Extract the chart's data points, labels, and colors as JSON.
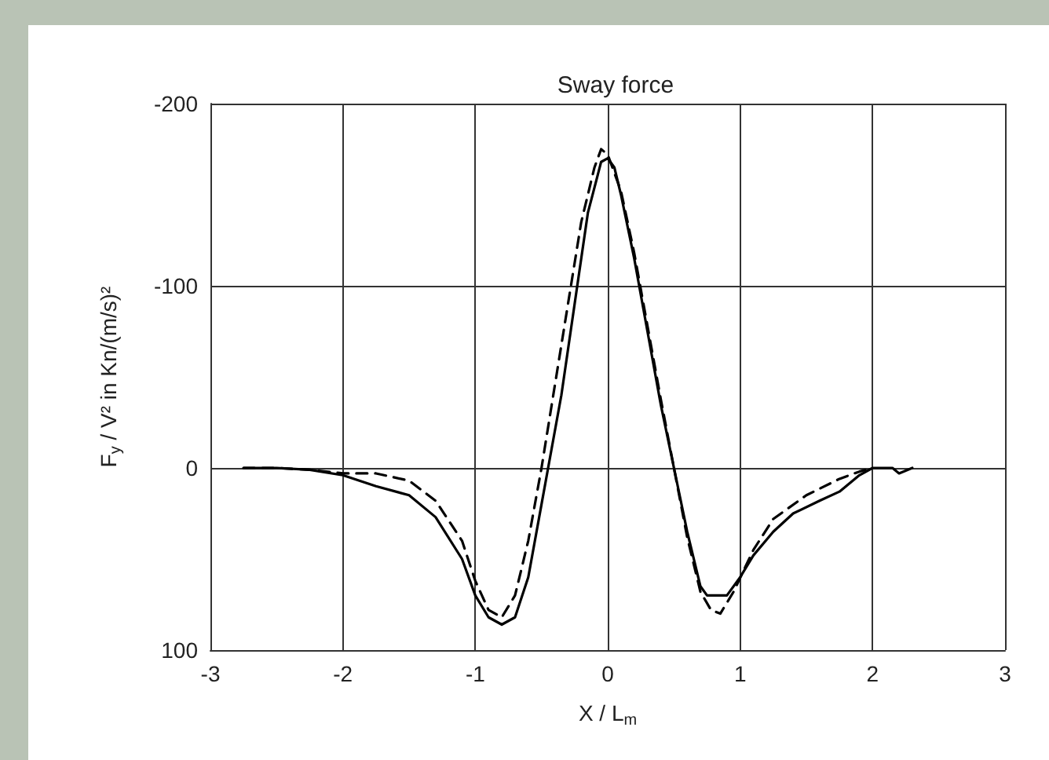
{
  "chart_data": {
    "type": "line",
    "title": "Sway force",
    "xlabel": "X / L$_{m}$",
    "ylabel": "F$_{y}$ / V² in Kn/(m/s)²",
    "xlim": [
      -3,
      3
    ],
    "xticks": [
      -3,
      -2,
      -1,
      0,
      1,
      2,
      3
    ],
    "ylim": [
      100,
      -200
    ],
    "yticks": [
      -200,
      -100,
      0,
      100
    ],
    "grid": true,
    "marker": "none",
    "series": [
      {
        "color": "#000000",
        "line_style": "solid",
        "x": [
          -2.75,
          -2.5,
          -2.25,
          -2,
          -1.75,
          -1.5,
          -1.3,
          -1.1,
          -1.0,
          -0.9,
          -0.8,
          -0.7,
          -0.6,
          -0.5,
          -0.45,
          -0.35,
          -0.25,
          -0.15,
          -0.05,
          0,
          0.05,
          0.1,
          0.2,
          0.3,
          0.4,
          0.5,
          0.6,
          0.7,
          0.75,
          0.9,
          1.0,
          1.1,
          1.25,
          1.4,
          1.6,
          1.75,
          1.9,
          2.0,
          2.15,
          2.2,
          2.3
        ],
        "values": [
          0,
          0,
          1,
          4,
          10,
          15,
          27,
          50,
          70,
          82,
          86,
          82,
          60,
          20,
          0,
          -40,
          -90,
          -140,
          -168,
          -170,
          -165,
          -150,
          -115,
          -75,
          -35,
          0,
          35,
          65,
          70,
          70,
          60,
          48,
          35,
          25,
          18,
          13,
          4,
          0,
          0,
          3,
          0
        ]
      },
      {
        "color": "#000000",
        "line_style": "dashed",
        "x": [
          -2.75,
          -2.5,
          -2.25,
          -2,
          -1.75,
          -1.5,
          -1.3,
          -1.1,
          -1.0,
          -0.9,
          -0.8,
          -0.7,
          -0.6,
          -0.5,
          -0.4,
          -0.3,
          -0.2,
          -0.1,
          -0.05,
          0,
          0.1,
          0.2,
          0.3,
          0.4,
          0.5,
          0.6,
          0.7,
          0.78,
          0.85,
          0.95,
          1.1,
          1.25,
          1.5,
          1.75,
          1.9,
          2.0
        ],
        "values": [
          0,
          0,
          1,
          3,
          3,
          7,
          18,
          40,
          62,
          78,
          82,
          70,
          40,
          0,
          -45,
          -90,
          -135,
          -165,
          -175,
          -172,
          -152,
          -118,
          -78,
          -38,
          0,
          38,
          68,
          78,
          80,
          68,
          45,
          28,
          15,
          6,
          2,
          0
        ]
      }
    ]
  }
}
